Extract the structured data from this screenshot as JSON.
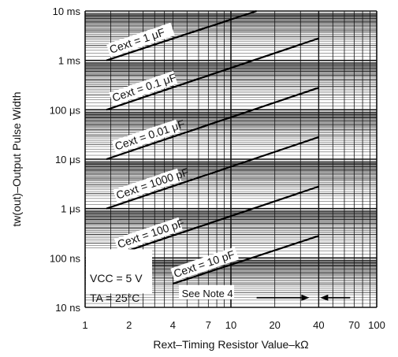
{
  "chart_data": {
    "type": "line",
    "title": "",
    "xlabel": "Rext–Timing Resistor Value–kΩ",
    "ylabel": "tw(out)–Output Pulse Width",
    "x_scale": "log",
    "y_scale": "log",
    "xlim_kohm": [
      1,
      100
    ],
    "ylim_seconds": [
      1e-08,
      0.01
    ],
    "grid": true,
    "x_ticks": [
      {
        "value": 1,
        "label": "1"
      },
      {
        "value": 2,
        "label": "2"
      },
      {
        "value": 4,
        "label": "4"
      },
      {
        "value": 7,
        "label": "7"
      },
      {
        "value": 10,
        "label": "10"
      },
      {
        "value": 20,
        "label": "20"
      },
      {
        "value": 40,
        "label": "40"
      },
      {
        "value": 70,
        "label": "70"
      },
      {
        "value": 100,
        "label": "100"
      }
    ],
    "y_ticks": [
      {
        "value": 0.01,
        "label": "10 ms"
      },
      {
        "value": 0.001,
        "label": "1 ms"
      },
      {
        "value": 0.0001,
        "label": "100 μs"
      },
      {
        "value": 1e-05,
        "label": "10 μs"
      },
      {
        "value": 1e-06,
        "label": "1 μs"
      },
      {
        "value": 1e-07,
        "label": "100 ns"
      },
      {
        "value": 1e-08,
        "label": "10 ns"
      }
    ],
    "series": [
      {
        "name": "Cext = 1 μF",
        "x": [
          1.4,
          15
        ],
        "y": [
          0.001,
          0.01
        ]
      },
      {
        "name": "Cext = 0.1 μF",
        "x": [
          1.4,
          40
        ],
        "y": [
          0.0001,
          0.0028
        ]
      },
      {
        "name": "Cext = 0.01 μF",
        "x": [
          1.4,
          40
        ],
        "y": [
          1e-05,
          0.00028
        ]
      },
      {
        "name": "Cext = 1000 pF",
        "x": [
          1.4,
          40
        ],
        "y": [
          1e-06,
          2.8e-05
        ]
      },
      {
        "name": "Cext = 100 pF",
        "x": [
          1.4,
          40
        ],
        "y": [
          1e-07,
          2.8e-06
        ]
      },
      {
        "name": "Cext = 10 pF",
        "x": [
          4,
          40
        ],
        "y": [
          3e-08,
          2.8e-07
        ]
      }
    ],
    "conditions": {
      "vcc": "VCC = 5 V",
      "ta": "TA = 25°C"
    },
    "note": "See Note 4",
    "limit_x_kohm": 40
  }
}
